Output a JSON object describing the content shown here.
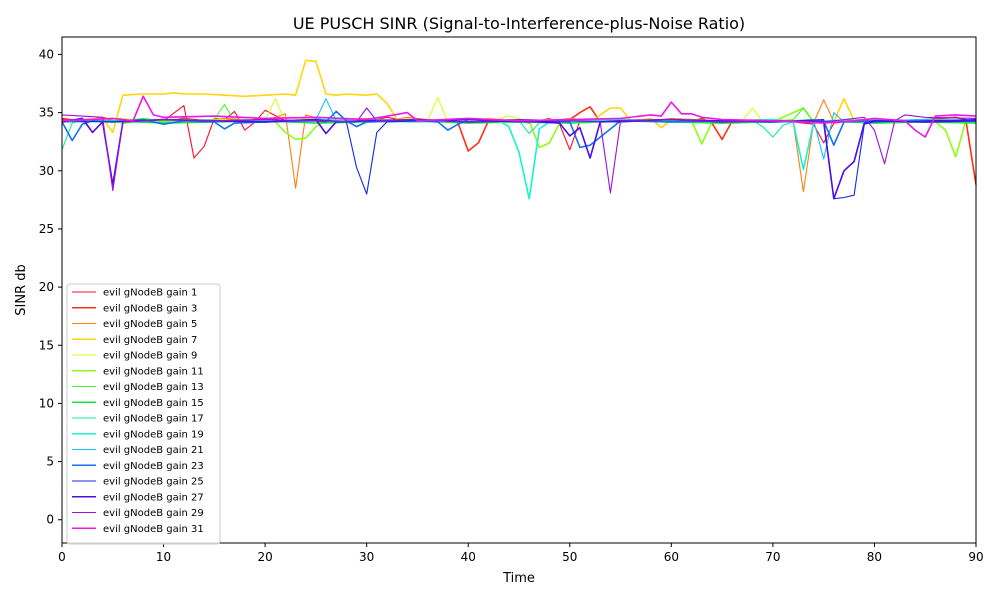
{
  "chart_data": {
    "type": "line",
    "title": "UE PUSCH SINR (Signal-to-Interference-plus-Noise Ratio)",
    "xlabel": "Time",
    "ylabel": "SINR db",
    "xlim": [
      0,
      90
    ],
    "ylim": [
      -2,
      41.5
    ],
    "xticks": [
      0,
      10,
      20,
      30,
      40,
      50,
      60,
      70,
      80,
      90
    ],
    "yticks": [
      0,
      5,
      10,
      15,
      20,
      25,
      30,
      35,
      40
    ],
    "grid": false,
    "legend_position": "lower-left",
    "series": [
      {
        "name": "evil gNodeB gain 1",
        "color": "#ff0d2a",
        "x": [
          0,
          2,
          4,
          6,
          8,
          10,
          12,
          13,
          14,
          15,
          16,
          17,
          18,
          19,
          20,
          22,
          24,
          26,
          28,
          30,
          32,
          34,
          36,
          38,
          40,
          42,
          44,
          46,
          48,
          49,
          50,
          51,
          52,
          53,
          55,
          60,
          65,
          70,
          72,
          74,
          75,
          76,
          78,
          80,
          85,
          90
        ],
        "y": [
          34.5,
          34.3,
          34.6,
          34.1,
          34.4,
          34.3,
          35.6,
          31.1,
          32.1,
          34.5,
          34.4,
          35.1,
          33.5,
          34.2,
          35.2,
          34.3,
          34.4,
          34.3,
          34.4,
          34.2,
          34.6,
          34.3,
          34.4,
          34.3,
          34.4,
          34.2,
          34.4,
          34.1,
          34.5,
          34.0,
          31.8,
          34.3,
          34.2,
          34.3,
          34.4,
          34.2,
          34.3,
          34.3,
          34.2,
          34.0,
          32.4,
          34.1,
          34.3,
          34.2,
          34.3,
          34.3
        ]
      },
      {
        "name": "evil gNodeB gain 3",
        "color": "#ff3010",
        "x": [
          0,
          2,
          4,
          6,
          8,
          10,
          12,
          14,
          16,
          18,
          20,
          22,
          24,
          26,
          28,
          30,
          32,
          34,
          36,
          38,
          39,
          40,
          41,
          42,
          43,
          45,
          48,
          50,
          51,
          52,
          53,
          55,
          58,
          60,
          62,
          63,
          64,
          65,
          66,
          68,
          70,
          75,
          80,
          85,
          88,
          89,
          90
        ],
        "y": [
          34.4,
          34.2,
          34.5,
          34.3,
          34.4,
          34.2,
          34.5,
          34.3,
          34.4,
          34.3,
          34.5,
          34.3,
          34.4,
          34.3,
          34.2,
          34.4,
          34.3,
          34.4,
          34.3,
          34.4,
          34.1,
          31.7,
          32.4,
          34.3,
          34.4,
          34.2,
          34.3,
          34.4,
          35.0,
          35.5,
          34.2,
          34.3,
          34.4,
          34.3,
          34.2,
          34.5,
          34.1,
          32.7,
          34.3,
          34.2,
          34.3,
          34.3,
          34.2,
          34.4,
          34.6,
          34.4,
          28.8
        ]
      },
      {
        "name": "evil gNodeB gain 5",
        "color": "#ff7f0e",
        "x": [
          0,
          2,
          4,
          6,
          8,
          10,
          12,
          14,
          16,
          18,
          20,
          22,
          23,
          24,
          26,
          28,
          30,
          32,
          34,
          36,
          38,
          40,
          42,
          45,
          48,
          50,
          53,
          55,
          58,
          60,
          65,
          70,
          72,
          73,
          74,
          75,
          76,
          78,
          80,
          85,
          90
        ],
        "y": [
          34.2,
          34.4,
          34.3,
          34.5,
          34.3,
          34.4,
          34.2,
          34.3,
          34.5,
          34.4,
          34.3,
          34.9,
          28.5,
          34.8,
          34.3,
          34.4,
          34.5,
          34.3,
          34.6,
          34.4,
          34.3,
          34.5,
          34.2,
          34.4,
          34.3,
          34.5,
          34.2,
          34.4,
          34.3,
          34.5,
          34.3,
          34.4,
          34.2,
          28.2,
          34.1,
          36.1,
          34.2,
          34.3,
          34.4,
          34.3,
          34.3
        ]
      },
      {
        "name": "evil gNodeB gain 7",
        "color": "#ffd60a",
        "x": [
          0,
          2,
          4,
          5,
          6,
          8,
          10,
          11,
          12,
          14,
          16,
          18,
          20,
          22,
          23,
          24,
          25,
          26,
          27,
          28,
          30,
          31,
          32,
          33,
          34,
          36,
          38,
          40,
          42,
          44,
          46,
          48,
          50,
          52,
          54,
          55,
          56,
          58,
          59,
          60,
          62,
          64,
          66,
          68,
          70,
          72,
          74,
          76,
          77,
          78,
          80,
          85,
          90
        ],
        "y": [
          34.2,
          34.4,
          34.5,
          33.3,
          36.5,
          36.6,
          36.6,
          36.7,
          36.6,
          36.6,
          36.5,
          36.4,
          36.5,
          36.6,
          36.5,
          39.5,
          39.4,
          36.6,
          36.5,
          36.6,
          36.5,
          36.6,
          35.8,
          34.4,
          34.2,
          34.3,
          34.4,
          34.2,
          34.5,
          34.3,
          34.2,
          34.4,
          34.3,
          34.2,
          35.4,
          35.4,
          34.3,
          34.5,
          33.7,
          34.4,
          34.2,
          34.3,
          34.1,
          34.2,
          34.4,
          34.3,
          34.4,
          34.2,
          36.2,
          34.3,
          34.4,
          34.3,
          34.3
        ]
      },
      {
        "name": "evil gNodeB gain 9",
        "color": "#d7ff1a",
        "x": [
          0,
          2,
          4,
          6,
          8,
          10,
          12,
          14,
          16,
          18,
          20,
          21,
          22,
          24,
          26,
          28,
          30,
          32,
          34,
          36,
          37,
          38,
          40,
          42,
          44,
          46,
          48,
          50,
          55,
          60,
          65,
          67,
          68,
          69,
          70,
          75,
          80,
          85,
          90
        ],
        "y": [
          34.3,
          34.4,
          34.2,
          34.5,
          34.3,
          34.4,
          34.2,
          34.3,
          34.4,
          34.2,
          34.3,
          36.2,
          34.2,
          34.5,
          34.3,
          34.4,
          34.2,
          34.3,
          34.5,
          34.3,
          36.3,
          34.2,
          34.4,
          34.2,
          34.7,
          34.3,
          34.4,
          34.2,
          34.3,
          34.4,
          34.3,
          34.3,
          35.4,
          34.2,
          34.4,
          34.3,
          34.2,
          34.4,
          34.3
        ]
      },
      {
        "name": "evil gNodeB gain 11",
        "color": "#8cff14",
        "x": [
          0,
          2,
          4,
          6,
          8,
          10,
          12,
          14,
          16,
          18,
          20,
          21,
          22,
          23,
          24,
          25,
          26,
          28,
          30,
          35,
          40,
          45,
          46,
          47,
          48,
          49,
          50,
          55,
          60,
          62,
          63,
          64,
          66,
          70,
          73,
          74,
          75,
          80,
          85,
          86,
          87,
          88,
          89,
          90
        ],
        "y": [
          34.2,
          34.3,
          34.4,
          34.1,
          34.3,
          34.2,
          34.4,
          34.3,
          34.2,
          34.4,
          34.3,
          34.2,
          33.3,
          32.7,
          32.8,
          33.8,
          34.3,
          34.2,
          34.4,
          34.3,
          34.2,
          34.4,
          34.3,
          32.0,
          32.4,
          34.1,
          34.3,
          34.2,
          34.4,
          34.3,
          32.3,
          34.2,
          34.3,
          34.2,
          35.4,
          34.2,
          34.3,
          34.4,
          34.3,
          34.2,
          33.5,
          31.2,
          34.3,
          34.2
        ]
      },
      {
        "name": "evil gNodeB gain 13",
        "color": "#3cff2a",
        "x": [
          0,
          5,
          8,
          10,
          15,
          16,
          17,
          20,
          25,
          30,
          35,
          40,
          45,
          50,
          55,
          60,
          65,
          70,
          72,
          73,
          74,
          75,
          80,
          85,
          90
        ],
        "y": [
          34.3,
          34.2,
          34.5,
          34.3,
          34.4,
          35.7,
          34.2,
          34.3,
          34.4,
          34.2,
          34.3,
          34.4,
          34.2,
          34.3,
          34.4,
          34.2,
          34.3,
          34.2,
          34.4,
          35.4,
          34.2,
          34.3,
          34.4,
          34.2,
          34.3
        ]
      },
      {
        "name": "evil gNodeB gain 15",
        "color": "#10e840",
        "x": [
          0,
          5,
          10,
          15,
          20,
          25,
          30,
          35,
          40,
          45,
          50,
          55,
          60,
          65,
          70,
          75,
          80,
          85,
          90
        ],
        "y": [
          34.2,
          34.3,
          34.1,
          34.2,
          34.3,
          34.1,
          34.2,
          34.3,
          34.1,
          34.2,
          34.1,
          34.3,
          34.2,
          34.1,
          34.2,
          34.3,
          34.1,
          34.2,
          34.1
        ]
      },
      {
        "name": "evil gNodeB gain 17",
        "color": "#14f09a",
        "x": [
          0,
          1,
          2,
          5,
          10,
          15,
          20,
          25,
          30,
          35,
          40,
          45,
          46,
          47,
          48,
          50,
          55,
          60,
          65,
          68,
          69,
          70,
          71,
          72,
          75,
          80,
          85,
          90
        ],
        "y": [
          31.8,
          34.1,
          34.3,
          34.2,
          34.4,
          34.3,
          34.2,
          34.4,
          34.3,
          34.2,
          34.4,
          34.3,
          33.2,
          34.1,
          34.3,
          34.2,
          34.4,
          34.3,
          34.2,
          34.3,
          33.8,
          32.9,
          33.9,
          34.2,
          34.3,
          34.4,
          34.2,
          34.3
        ]
      },
      {
        "name": "evil gNodeB gain 19",
        "color": "#17f2d0",
        "x": [
          0,
          5,
          10,
          15,
          20,
          25,
          30,
          35,
          40,
          43,
          44,
          45,
          46,
          47,
          48,
          50,
          55,
          60,
          65,
          70,
          72,
          73,
          74,
          75,
          80,
          85,
          90
        ],
        "y": [
          34.3,
          34.2,
          34.4,
          34.3,
          34.2,
          34.4,
          34.3,
          34.2,
          34.4,
          34.3,
          33.8,
          31.6,
          27.6,
          33.6,
          34.2,
          34.3,
          34.4,
          34.2,
          34.3,
          34.4,
          34.2,
          30.1,
          34.1,
          34.3,
          34.2,
          34.4,
          34.3
        ]
      },
      {
        "name": "evil gNodeB gain 21",
        "color": "#17c3f2",
        "x": [
          0,
          5,
          10,
          15,
          20,
          25,
          26,
          27,
          28,
          30,
          35,
          40,
          45,
          50,
          55,
          60,
          65,
          70,
          74,
          75,
          76,
          77,
          80,
          85,
          90
        ],
        "y": [
          34.2,
          34.3,
          34.4,
          34.2,
          34.3,
          34.4,
          36.2,
          34.3,
          34.2,
          34.4,
          34.3,
          34.2,
          34.4,
          34.3,
          34.2,
          34.4,
          34.3,
          34.2,
          34.4,
          31.0,
          35.0,
          34.2,
          34.3,
          34.4,
          34.2
        ]
      },
      {
        "name": "evil gNodeB gain 23",
        "color": "#1472f0",
        "x": [
          0,
          1,
          2,
          3,
          5,
          8,
          10,
          12,
          15,
          16,
          17,
          20,
          25,
          26,
          27,
          28,
          29,
          30,
          35,
          37,
          38,
          39,
          40,
          45,
          50,
          51,
          52,
          55,
          60,
          65,
          70,
          75,
          76,
          77,
          80,
          85,
          90
        ],
        "y": [
          34.2,
          32.6,
          34.0,
          34.3,
          34.2,
          34.4,
          34.0,
          34.3,
          34.2,
          33.6,
          34.1,
          34.2,
          34.3,
          34.2,
          35.1,
          34.3,
          33.8,
          34.2,
          34.3,
          34.2,
          33.5,
          34.0,
          34.4,
          34.3,
          34.2,
          32.0,
          32.2,
          34.3,
          34.2,
          34.3,
          34.2,
          34.3,
          32.2,
          34.2,
          34.3,
          34.2,
          34.3
        ]
      },
      {
        "name": "evil gNodeB gain 25",
        "color": "#1428e8",
        "x": [
          0,
          5,
          10,
          15,
          20,
          25,
          28,
          29,
          30,
          31,
          32,
          35,
          40,
          45,
          50,
          55,
          60,
          65,
          70,
          75,
          76,
          77,
          78,
          79,
          80,
          85,
          90
        ],
        "y": [
          34.3,
          34.2,
          34.4,
          34.3,
          34.2,
          34.4,
          34.2,
          30.3,
          28.0,
          33.3,
          34.2,
          34.3,
          34.4,
          34.2,
          34.3,
          34.2,
          34.4,
          34.3,
          34.2,
          34.4,
          27.6,
          27.7,
          27.9,
          34.0,
          34.2,
          34.3,
          34.4
        ]
      },
      {
        "name": "evil gNodeB gain 27",
        "color": "#4b0ee6",
        "x": [
          0,
          2,
          3,
          4,
          5,
          6,
          10,
          15,
          20,
          25,
          26,
          27,
          30,
          35,
          40,
          45,
          49,
          50,
          51,
          52,
          53,
          55,
          60,
          65,
          70,
          75,
          76,
          77,
          78,
          79,
          80,
          85,
          90
        ],
        "y": [
          34.2,
          34.5,
          33.3,
          34.2,
          28.8,
          34.2,
          34.4,
          34.3,
          34.2,
          34.4,
          33.2,
          34.2,
          34.3,
          34.4,
          34.2,
          34.3,
          34.1,
          33.0,
          33.7,
          31.1,
          34.2,
          34.3,
          34.4,
          34.2,
          34.3,
          34.2,
          27.6,
          30.0,
          30.8,
          34.1,
          34.3,
          34.2,
          34.3
        ]
      },
      {
        "name": "evil gNodeB gain 29",
        "color": "#9a10e0",
        "x": [
          0,
          2,
          4,
          5,
          6,
          10,
          15,
          20,
          25,
          29,
          30,
          31,
          35,
          40,
          45,
          50,
          53,
          54,
          55,
          60,
          65,
          70,
          75,
          79,
          80,
          81,
          82,
          83,
          85,
          90
        ],
        "y": [
          34.8,
          34.7,
          34.6,
          28.3,
          34.2,
          34.4,
          34.3,
          34.4,
          34.3,
          34.2,
          35.4,
          34.3,
          34.4,
          34.2,
          34.4,
          34.3,
          34.2,
          28.1,
          34.3,
          34.4,
          34.2,
          34.3,
          34.2,
          34.6,
          33.5,
          30.6,
          34.3,
          34.8,
          34.6,
          34.5
        ]
      },
      {
        "name": "evil gNodeB gain 31",
        "color": "#f016e8",
        "x": [
          0,
          5,
          7,
          8,
          9,
          10,
          15,
          20,
          25,
          30,
          34,
          35,
          40,
          45,
          50,
          55,
          58,
          59,
          60,
          61,
          62,
          63,
          65,
          70,
          75,
          78,
          80,
          83,
          84,
          85,
          86,
          88,
          90
        ],
        "y": [
          34.3,
          34.5,
          34.3,
          36.4,
          34.8,
          34.6,
          34.7,
          34.5,
          34.6,
          34.4,
          35.0,
          34.3,
          34.5,
          34.3,
          34.4,
          34.5,
          34.8,
          34.7,
          35.9,
          34.9,
          34.9,
          34.6,
          34.4,
          34.3,
          34.1,
          34.3,
          34.5,
          34.3,
          33.5,
          32.9,
          34.7,
          34.8,
          34.7
        ]
      }
    ]
  }
}
